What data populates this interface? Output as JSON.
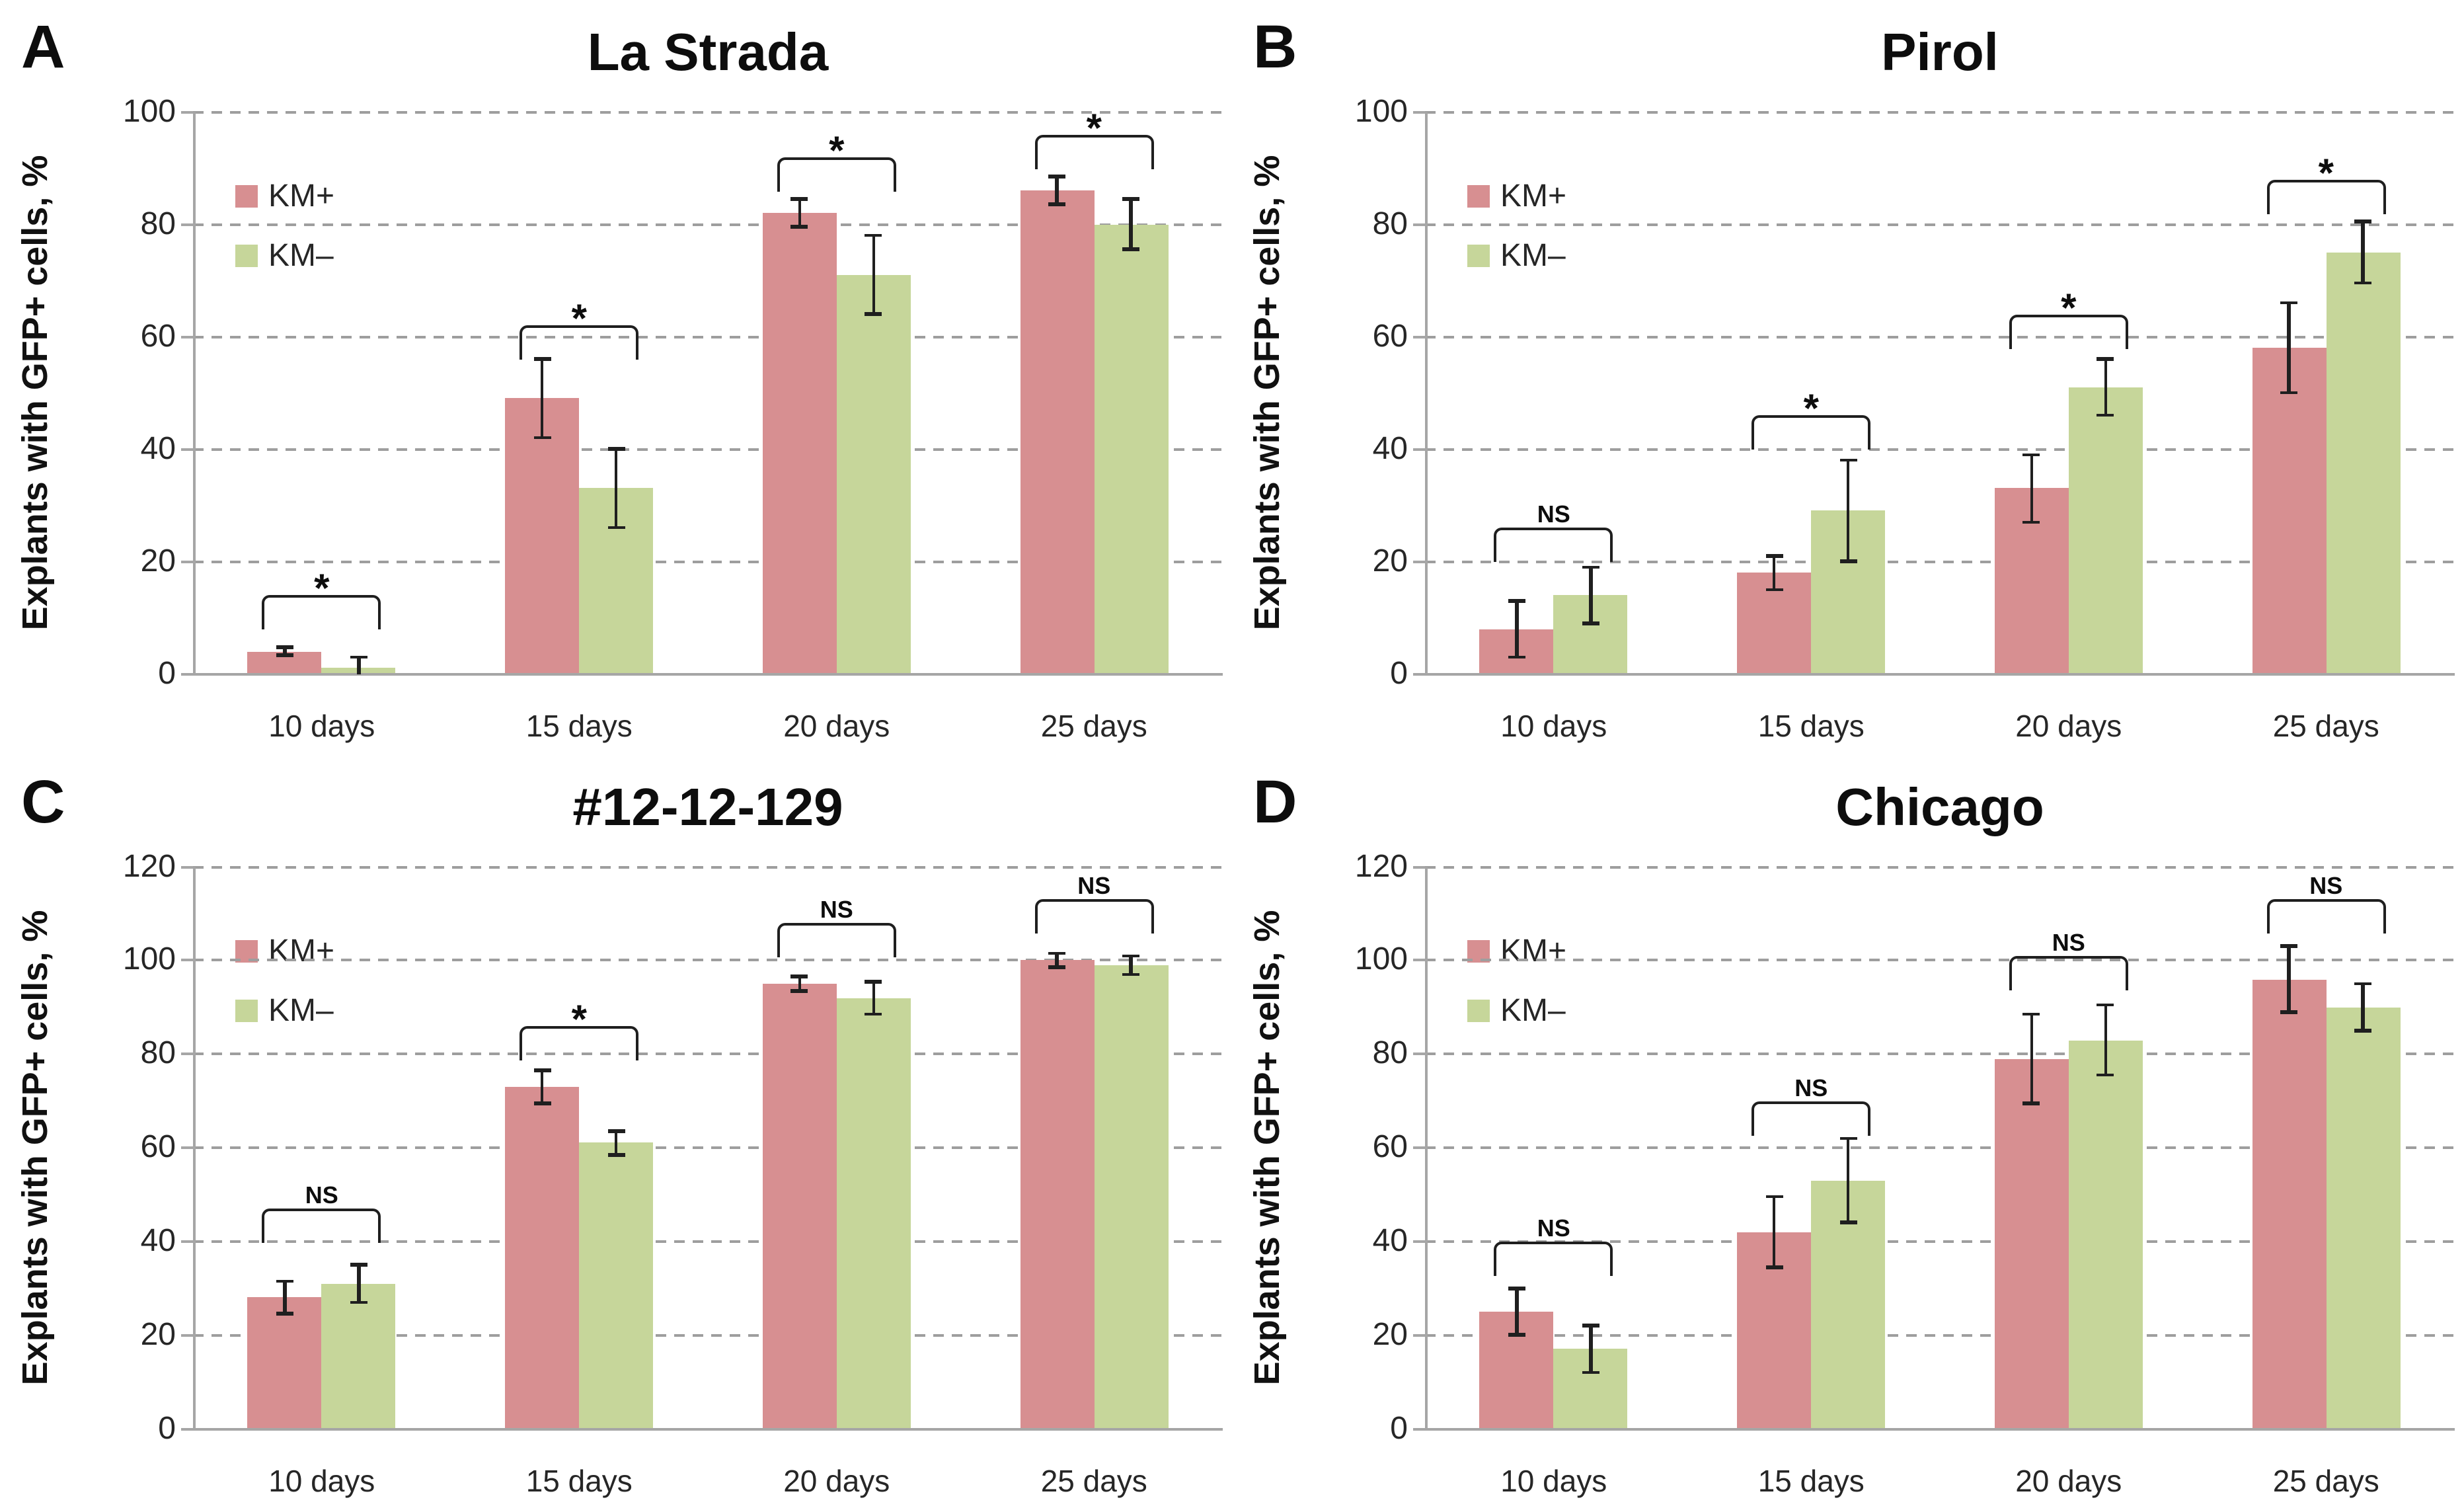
{
  "figure": {
    "y_axis_label": "Explants with GFP+ cells, %",
    "x_categories": [
      "10 days",
      "15 days",
      "20 days",
      "25 days"
    ],
    "legend": {
      "km_plus": "KM+",
      "km_minus": "KM–"
    },
    "colors": {
      "km_plus_fill": "#d78f91",
      "km_minus_fill": "#c6d69a",
      "error_bar": "#1f1f1f",
      "gridline": "#9e9e9e",
      "axis": "#a6a6a6",
      "tick_text": "#262626",
      "title_text": "#0d0d0d"
    }
  },
  "chart_data": [
    {
      "panel": "A",
      "type": "bar",
      "title": "La Strada",
      "ylabel": "Explants with GFP+ cells, %",
      "xlabel": "",
      "ylim": [
        0,
        100
      ],
      "yticks": [
        0,
        20,
        40,
        60,
        80,
        100
      ],
      "grid": true,
      "legend_position": "upper-left",
      "categories": [
        "10 days",
        "15 days",
        "20 days",
        "25 days"
      ],
      "series": [
        {
          "name": "KM+",
          "values": [
            4,
            49,
            82,
            86
          ],
          "errors": [
            0.7,
            7,
            2.5,
            2.5
          ]
        },
        {
          "name": "KM–",
          "values": [
            1,
            33,
            71,
            80
          ],
          "errors": [
            2,
            7,
            7,
            4.5
          ]
        }
      ],
      "significance": [
        {
          "label": "*",
          "y": 14
        },
        {
          "label": "*",
          "y": 62
        },
        {
          "label": "*",
          "y": 92
        },
        {
          "label": "*",
          "y": 96
        }
      ]
    },
    {
      "panel": "B",
      "type": "bar",
      "title": "Pirol",
      "ylabel": "Explants with GFP+ cells, %",
      "xlabel": "",
      "ylim": [
        0,
        100
      ],
      "yticks": [
        0,
        20,
        40,
        60,
        80,
        100
      ],
      "grid": true,
      "legend_position": "upper-left",
      "categories": [
        "10 days",
        "15 days",
        "20 days",
        "25 days"
      ],
      "series": [
        {
          "name": "KM+",
          "values": [
            8,
            18,
            33,
            58
          ],
          "errors": [
            5,
            3,
            6,
            8
          ]
        },
        {
          "name": "KM–",
          "values": [
            14,
            29,
            51,
            75
          ],
          "errors": [
            5,
            9,
            5,
            5.5
          ]
        }
      ],
      "significance": [
        {
          "label": "NS",
          "y": 26
        },
        {
          "label": "*",
          "y": 46
        },
        {
          "label": "*",
          "y": 64
        },
        {
          "label": "*",
          "y": 88
        }
      ]
    },
    {
      "panel": "C",
      "type": "bar",
      "title": "#12-12-129",
      "ylabel": "Explants with GFP+ cells, %",
      "xlabel": "",
      "ylim": [
        0,
        120
      ],
      "yticks": [
        0,
        20,
        40,
        60,
        80,
        100,
        120
      ],
      "grid": true,
      "legend_position": "upper-left",
      "categories": [
        "10 days",
        "15 days",
        "20 days",
        "25 days"
      ],
      "series": [
        {
          "name": "KM+",
          "values": [
            28,
            73,
            95,
            100
          ],
          "errors": [
            3.5,
            3.5,
            1.5,
            1.5
          ]
        },
        {
          "name": "KM–",
          "values": [
            31,
            61,
            92,
            99
          ],
          "errors": [
            4,
            2.5,
            3.5,
            2
          ]
        }
      ],
      "significance": [
        {
          "label": "NS",
          "y": 47
        },
        {
          "label": "*",
          "y": 86
        },
        {
          "label": "NS",
          "y": 108
        },
        {
          "label": "NS",
          "y": 113
        }
      ]
    },
    {
      "panel": "D",
      "type": "bar",
      "title": "Chicago",
      "ylabel": "Explants with GFP+ cells, %",
      "xlabel": "",
      "ylim": [
        0,
        120
      ],
      "yticks": [
        0,
        20,
        40,
        60,
        80,
        100,
        120
      ],
      "grid": true,
      "legend_position": "upper-left",
      "categories": [
        "10 days",
        "15 days",
        "20 days",
        "25 days"
      ],
      "series": [
        {
          "name": "KM+",
          "values": [
            25,
            42,
            79,
            96
          ],
          "errors": [
            5,
            7.5,
            9.5,
            7
          ]
        },
        {
          "name": "KM–",
          "values": [
            17,
            53,
            83,
            90
          ],
          "errors": [
            5,
            9,
            7.5,
            5
          ]
        }
      ],
      "significance": [
        {
          "label": "NS",
          "y": 40
        },
        {
          "label": "NS",
          "y": 70
        },
        {
          "label": "NS",
          "y": 101
        },
        {
          "label": "NS",
          "y": 113
        }
      ]
    }
  ]
}
